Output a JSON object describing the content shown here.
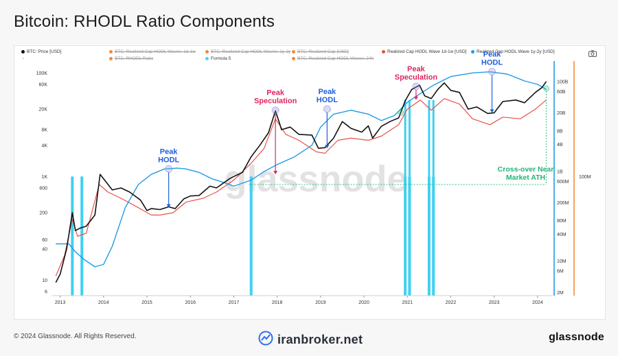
{
  "header": {
    "title": "Bitcoin: RHODL Ratio Components"
  },
  "legend": [
    {
      "label": "BTC: Price [USD]",
      "color": "#111111",
      "active": true
    },
    {
      "label": "BTC: Realized Cap HODL Waves: 1d-1w",
      "color": "#f08a3c",
      "active": false
    },
    {
      "label": "BTC: Realized Cap HODL Waves: 1y-2y",
      "color": "#f08a3c",
      "active": false
    },
    {
      "label": "BTC: Realized Cap [USD]",
      "color": "#f08a3c",
      "active": false
    },
    {
      "label": "Realized Cap HODL Wave 1d-1w [USD]",
      "color": "#e8504a",
      "active": true
    },
    {
      "label": "Realized Cap HODL Wave 1y-2y [USD]",
      "color": "#1e9be6",
      "active": true
    },
    {
      "label": "BTC: RHODL Ratio",
      "color": "#f08a3c",
      "active": false
    },
    {
      "label": "Formula 5",
      "color": "#55d0f0",
      "active": true
    },
    {
      "label": "BTC: Realized Cap HODL Waves: 24h",
      "color": "#f08a3c",
      "active": false
    }
  ],
  "legend_extra": "-",
  "camera_icon": "camera-icon",
  "watermark": "glassnode",
  "annotations": {
    "peak_hodl": "Peak HODL",
    "peak_hodl_line1": "Peak",
    "peak_hodl_line2": "HODL",
    "peak_spec_line1": "Peak",
    "peak_spec_line2": "Speculation",
    "crossover_line1": "Cross-over Near",
    "crossover_line2": "Market ATH"
  },
  "colors": {
    "price": "#111111",
    "wave_short": "#e8504a",
    "wave_long": "#1e9be6",
    "formula": "#3fd0f2",
    "hodl_text": "#1e5fd9",
    "spec_text": "#e0245e",
    "cross_text": "#1fb574",
    "orange_axis": "#f08a3c"
  },
  "chart_data": {
    "type": "line",
    "title": "Bitcoin: RHODL Ratio Components",
    "x_range": [
      2012.8,
      2024.35
    ],
    "x_ticks": [
      2013,
      2014,
      2015,
      2016,
      2017,
      2018,
      2019,
      2020,
      2021,
      2022,
      2023,
      2024
    ],
    "x_tick_labels": [
      "2013",
      "2014",
      "2015",
      "2016",
      "2017",
      "2018",
      "2019",
      "2020",
      "2021",
      "2022",
      "2023",
      "2024"
    ],
    "left_axis": {
      "scale": "log",
      "range": [
        5,
        150000
      ],
      "ticks": [
        6,
        10,
        40,
        60,
        200,
        600,
        1000,
        4000,
        8000,
        20000,
        60000,
        100000
      ],
      "tick_labels": [
        "6",
        "10",
        "40",
        "60",
        "200",
        "600",
        "1K",
        "4K",
        "8K",
        "20K",
        "60K",
        "100K"
      ]
    },
    "right_axis": {
      "scale": "log",
      "range": [
        1700000,
        250000000000
      ],
      "ticks": [
        2000000,
        6000000,
        10000000,
        40000000,
        80000000,
        200000000,
        600000000,
        1000000000,
        4000000000,
        8000000000,
        20000000000,
        60000000000,
        100000000000
      ],
      "tick_labels": [
        "2M",
        "6M",
        "10M",
        "40M",
        "80M",
        "200M",
        "600M",
        "1B",
        "4B",
        "8B",
        "20B",
        "60B",
        "100B"
      ]
    },
    "far_right_axis": {
      "tick_labels": [
        "100M"
      ]
    },
    "series": [
      {
        "name": "BTC: Price [USD]",
        "axis": "left",
        "points": [
          [
            2012.9,
            9
          ],
          [
            2013.0,
            13
          ],
          [
            2013.15,
            40
          ],
          [
            2013.28,
            200
          ],
          [
            2013.35,
            90
          ],
          [
            2013.45,
            100
          ],
          [
            2013.6,
            110
          ],
          [
            2013.8,
            180
          ],
          [
            2013.92,
            1100
          ],
          [
            2014.05,
            800
          ],
          [
            2014.2,
            550
          ],
          [
            2014.4,
            600
          ],
          [
            2014.6,
            500
          ],
          [
            2014.85,
            350
          ],
          [
            2015.0,
            220
          ],
          [
            2015.1,
            240
          ],
          [
            2015.3,
            230
          ],
          [
            2015.5,
            260
          ],
          [
            2015.65,
            240
          ],
          [
            2015.85,
            370
          ],
          [
            2016.0,
            420
          ],
          [
            2016.2,
            430
          ],
          [
            2016.45,
            650
          ],
          [
            2016.6,
            600
          ],
          [
            2016.9,
            900
          ],
          [
            2017.0,
            1000
          ],
          [
            2017.2,
            1200
          ],
          [
            2017.4,
            2400
          ],
          [
            2017.6,
            4000
          ],
          [
            2017.8,
            7000
          ],
          [
            2017.96,
            18500
          ],
          [
            2018.05,
            11000
          ],
          [
            2018.1,
            8000
          ],
          [
            2018.3,
            9000
          ],
          [
            2018.5,
            6500
          ],
          [
            2018.8,
            6300
          ],
          [
            2018.95,
            3500
          ],
          [
            2019.1,
            3600
          ],
          [
            2019.3,
            5500
          ],
          [
            2019.5,
            11500
          ],
          [
            2019.7,
            8500
          ],
          [
            2019.95,
            7200
          ],
          [
            2020.1,
            9500
          ],
          [
            2020.2,
            5500
          ],
          [
            2020.4,
            9300
          ],
          [
            2020.6,
            11500
          ],
          [
            2020.8,
            13500
          ],
          [
            2020.95,
            29000
          ],
          [
            2021.1,
            48000
          ],
          [
            2021.28,
            58000
          ],
          [
            2021.4,
            36000
          ],
          [
            2021.55,
            32000
          ],
          [
            2021.7,
            48000
          ],
          [
            2021.85,
            64000
          ],
          [
            2022.0,
            46000
          ],
          [
            2022.2,
            42000
          ],
          [
            2022.4,
            20000
          ],
          [
            2022.6,
            22000
          ],
          [
            2022.85,
            16500
          ],
          [
            2023.0,
            17000
          ],
          [
            2023.2,
            28000
          ],
          [
            2023.5,
            30000
          ],
          [
            2023.7,
            26500
          ],
          [
            2023.95,
            42000
          ],
          [
            2024.1,
            52000
          ],
          [
            2024.2,
            68000
          ]
        ]
      },
      {
        "name": "Realized Cap HODL Wave 1d-1w [USD]",
        "axis": "left",
        "points": [
          [
            2012.9,
            12
          ],
          [
            2013.1,
            30
          ],
          [
            2013.28,
            150
          ],
          [
            2013.4,
            70
          ],
          [
            2013.6,
            80
          ],
          [
            2013.9,
            700
          ],
          [
            2014.1,
            500
          ],
          [
            2014.4,
            380
          ],
          [
            2014.8,
            250
          ],
          [
            2015.1,
            180
          ],
          [
            2015.3,
            180
          ],
          [
            2015.6,
            200
          ],
          [
            2015.9,
            320
          ],
          [
            2016.3,
            380
          ],
          [
            2016.6,
            500
          ],
          [
            2017.0,
            850
          ],
          [
            2017.4,
            1800
          ],
          [
            2017.7,
            3500
          ],
          [
            2017.96,
            13000
          ],
          [
            2018.2,
            6500
          ],
          [
            2018.5,
            5000
          ],
          [
            2018.9,
            3000
          ],
          [
            2019.1,
            2800
          ],
          [
            2019.4,
            5000
          ],
          [
            2019.7,
            5500
          ],
          [
            2020.1,
            5000
          ],
          [
            2020.4,
            6000
          ],
          [
            2020.8,
            10000
          ],
          [
            2021.0,
            20000
          ],
          [
            2021.3,
            30000
          ],
          [
            2021.55,
            19000
          ],
          [
            2021.85,
            32000
          ],
          [
            2022.2,
            25000
          ],
          [
            2022.5,
            13000
          ],
          [
            2022.9,
            10000
          ],
          [
            2023.2,
            14000
          ],
          [
            2023.6,
            13000
          ],
          [
            2023.95,
            20000
          ],
          [
            2024.2,
            30000
          ]
        ]
      },
      {
        "name": "Realized Cap HODL Wave 1y-2y [USD]",
        "axis": "left",
        "points": [
          [
            2012.9,
            50
          ],
          [
            2013.2,
            50
          ],
          [
            2013.35,
            35
          ],
          [
            2013.55,
            25
          ],
          [
            2013.8,
            18
          ],
          [
            2014.0,
            20
          ],
          [
            2014.2,
            45
          ],
          [
            2014.5,
            250
          ],
          [
            2014.8,
            700
          ],
          [
            2015.1,
            1100
          ],
          [
            2015.4,
            1400
          ],
          [
            2015.7,
            1450
          ],
          [
            2015.9,
            1400
          ],
          [
            2016.2,
            1200
          ],
          [
            2016.5,
            900
          ],
          [
            2016.8,
            750
          ],
          [
            2017.0,
            650
          ],
          [
            2017.4,
            850
          ],
          [
            2017.7,
            1250
          ],
          [
            2018.0,
            1700
          ],
          [
            2018.4,
            2400
          ],
          [
            2018.8,
            4000
          ],
          [
            2019.0,
            9000
          ],
          [
            2019.3,
            16000
          ],
          [
            2019.7,
            19000
          ],
          [
            2020.1,
            16000
          ],
          [
            2020.4,
            12000
          ],
          [
            2020.7,
            15000
          ],
          [
            2021.0,
            27000
          ],
          [
            2021.3,
            40000
          ],
          [
            2021.6,
            58000
          ],
          [
            2022.0,
            85000
          ],
          [
            2022.5,
            100000
          ],
          [
            2022.9,
            105000
          ],
          [
            2023.3,
            95000
          ],
          [
            2023.7,
            70000
          ],
          [
            2024.0,
            60000
          ],
          [
            2024.2,
            48000
          ]
        ]
      }
    ],
    "formula_spikes": [
      2013.28,
      2013.5,
      2017.4,
      2020.95,
      2021.05,
      2021.5,
      2021.6
    ],
    "annotations": [
      {
        "text": "Peak HODL",
        "x": 2015.5,
        "value": 1400,
        "arrow_to": 250
      },
      {
        "text": "Peak Speculation",
        "x": 2017.96,
        "value": 19000,
        "arrow_to": 1100
      },
      {
        "text": "Peak HODL",
        "x": 2019.15,
        "value": 20000,
        "arrow_to": 3500
      },
      {
        "text": "Peak Speculation",
        "x": 2021.2,
        "value": 55000,
        "arrow_to": 30000
      },
      {
        "text": "Peak HODL",
        "x": 2022.95,
        "value": 106000,
        "arrow_to": 17000
      },
      {
        "text": "Cross-over Near Market ATH",
        "x": 2024.2,
        "value": 60000
      }
    ]
  },
  "footer": {
    "copyright": "© 2024 Glassnode. All Rights Reserved.",
    "brand": "iranbroker.net",
    "logo": "glassnode"
  }
}
